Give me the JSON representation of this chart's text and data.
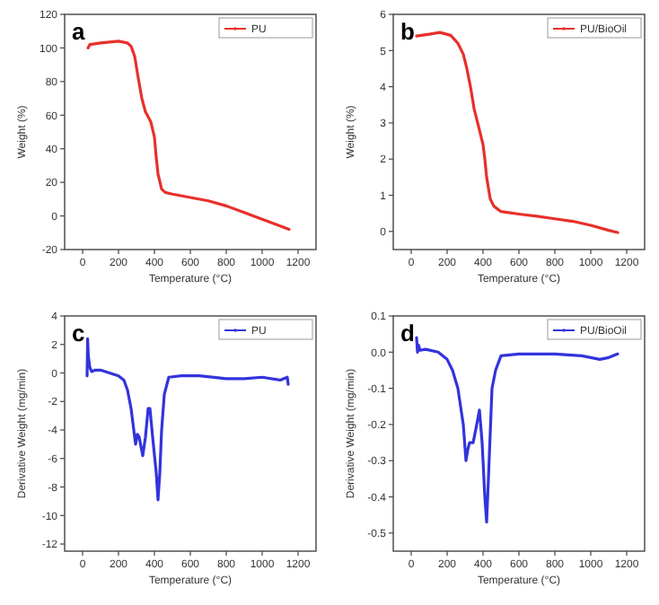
{
  "chart_data": [
    {
      "type": "line",
      "title": "a",
      "xlabel": "Temperature (°C)",
      "ylabel": "Weight (%)",
      "xlim": [
        -100,
        1300
      ],
      "xticks": [
        0,
        200,
        400,
        600,
        800,
        1000,
        1200
      ],
      "ylim": [
        -20,
        120
      ],
      "yticks": [
        -20,
        0,
        20,
        40,
        60,
        80,
        100,
        120
      ],
      "legend": "top right",
      "grid": false,
      "marker": "none",
      "line_style": "solid",
      "series": [
        {
          "name": "PU",
          "color": "#e8302a",
          "x": [
            30,
            40,
            100,
            200,
            250,
            270,
            290,
            310,
            330,
            350,
            380,
            400,
            410,
            420,
            440,
            460,
            500,
            600,
            700,
            800,
            900,
            1000,
            1100,
            1150
          ],
          "values": [
            100,
            102,
            103,
            104,
            103,
            101,
            95,
            82,
            70,
            62,
            56,
            47,
            35,
            25,
            16,
            14,
            13,
            11,
            9,
            6,
            2,
            -2,
            -6,
            -8
          ]
        }
      ]
    },
    {
      "type": "line",
      "title": "b",
      "xlabel": "Temperature (°C)",
      "ylabel": "Weight (%)",
      "xlim": [
        -100,
        1300
      ],
      "xticks": [
        0,
        200,
        400,
        600,
        800,
        1000,
        1200
      ],
      "ylim": [
        -0.5,
        6
      ],
      "yticks": [
        0,
        1,
        2,
        3,
        4,
        5,
        6
      ],
      "legend": "top right",
      "grid": false,
      "marker": "none",
      "line_style": "solid",
      "series": [
        {
          "name": "PU/BioOil",
          "color": "#e8302a",
          "x": [
            30,
            100,
            160,
            220,
            260,
            290,
            310,
            330,
            350,
            380,
            400,
            410,
            420,
            440,
            460,
            500,
            600,
            700,
            800,
            900,
            1000,
            1100,
            1150
          ],
          "values": [
            5.4,
            5.45,
            5.5,
            5.42,
            5.2,
            4.9,
            4.5,
            4.0,
            3.4,
            2.8,
            2.4,
            2.0,
            1.5,
            0.9,
            0.7,
            0.55,
            0.48,
            0.42,
            0.35,
            0.28,
            0.17,
            0.03,
            -0.03
          ]
        }
      ]
    },
    {
      "type": "line",
      "title": "c",
      "xlabel": "Temperature (°C)",
      "ylabel": "Derivative Weight (mg/min)",
      "xlim": [
        -100,
        1300
      ],
      "xticks": [
        0,
        200,
        400,
        600,
        800,
        1000,
        1200
      ],
      "ylim": [
        -12.5,
        4
      ],
      "yticks": [
        -12,
        -10,
        -8,
        -6,
        -4,
        -2,
        0,
        2,
        4
      ],
      "legend": "top right",
      "grid": false,
      "marker": "none",
      "line_style": "solid",
      "series": [
        {
          "name": "PU",
          "color": "#3333dd",
          "x": [
            25,
            28,
            32,
            40,
            50,
            70,
            100,
            150,
            200,
            230,
            250,
            270,
            285,
            295,
            305,
            315,
            335,
            350,
            365,
            375,
            390,
            410,
            420,
            430,
            440,
            455,
            480,
            550,
            650,
            800,
            900,
            1000,
            1100,
            1140,
            1145
          ],
          "values": [
            -0.2,
            2.4,
            1.2,
            0.4,
            0.1,
            0.2,
            0.2,
            0,
            -0.2,
            -0.5,
            -1.2,
            -2.5,
            -4,
            -5,
            -4.3,
            -4.5,
            -5.8,
            -4.5,
            -2.5,
            -2.5,
            -4.5,
            -7,
            -8.9,
            -7,
            -4,
            -1.5,
            -0.3,
            -0.2,
            -0.2,
            -0.4,
            -0.4,
            -0.3,
            -0.5,
            -0.3,
            -0.8
          ]
        }
      ]
    },
    {
      "type": "line",
      "title": "d",
      "xlabel": "Temperature (°C)",
      "ylabel": "Derivative Weight (mg/min)",
      "xlim": [
        -100,
        1300
      ],
      "xticks": [
        0,
        200,
        400,
        600,
        800,
        1000,
        1200
      ],
      "ylim": [
        -0.55,
        0.1
      ],
      "yticks": [
        {
          "value": 0.1,
          "label": "0.1"
        },
        {
          "value": 0,
          "label": "0.0"
        },
        -0.1,
        -0.2,
        -0.3,
        -0.4,
        -0.5
      ],
      "legend": "top right",
      "grid": false,
      "marker": "none",
      "line_style": "solid",
      "series": [
        {
          "name": "PU/BioOil",
          "color": "#3333dd",
          "x": [
            30,
            35,
            40,
            50,
            80,
            150,
            200,
            230,
            260,
            290,
            305,
            315,
            325,
            345,
            365,
            380,
            395,
            410,
            420,
            430,
            450,
            470,
            500,
            600,
            800,
            950,
            1050,
            1100,
            1150
          ],
          "values": [
            0.04,
            0.0,
            0.02,
            0.005,
            0.008,
            0.0,
            -0.02,
            -0.05,
            -0.1,
            -0.2,
            -0.3,
            -0.27,
            -0.25,
            -0.25,
            -0.2,
            -0.16,
            -0.25,
            -0.4,
            -0.47,
            -0.35,
            -0.1,
            -0.05,
            -0.01,
            -0.005,
            -0.005,
            -0.01,
            -0.02,
            -0.015,
            -0.005
          ]
        }
      ]
    }
  ]
}
